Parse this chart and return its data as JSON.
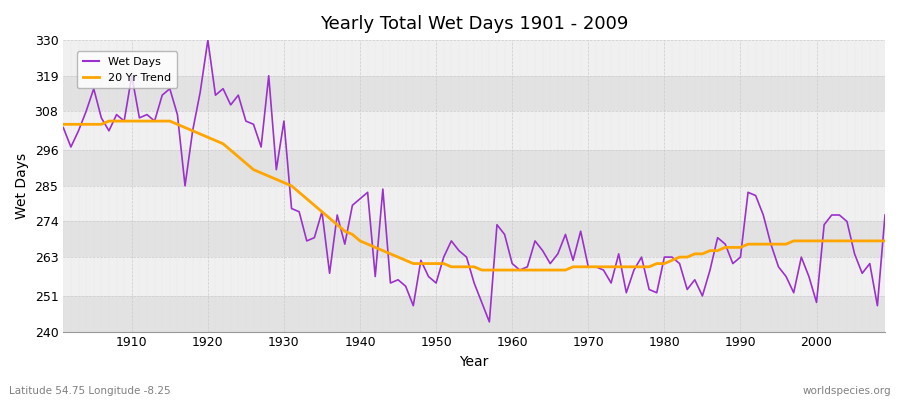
{
  "title": "Yearly Total Wet Days 1901 - 2009",
  "xlabel": "Year",
  "ylabel": "Wet Days",
  "subtitle": "Latitude 54.75 Longitude -8.25",
  "watermark": "worldspecies.org",
  "wet_days_color": "#9B30CD",
  "trend_color": "#FFA500",
  "plot_bg_color": "#F0F0F0",
  "fig_bg_color": "#FFFFFF",
  "band_color_light": "#F0F0F0",
  "band_color_dark": "#E2E2E2",
  "ylim": [
    240,
    330
  ],
  "xlim": [
    1901,
    2009
  ],
  "yticks": [
    240,
    251,
    263,
    274,
    285,
    296,
    308,
    319,
    330
  ],
  "xticks": [
    1910,
    1920,
    1930,
    1940,
    1950,
    1960,
    1970,
    1980,
    1990,
    2000
  ],
  "years": [
    1901,
    1902,
    1903,
    1904,
    1905,
    1906,
    1907,
    1908,
    1909,
    1910,
    1911,
    1912,
    1913,
    1914,
    1915,
    1916,
    1917,
    1918,
    1919,
    1920,
    1921,
    1922,
    1923,
    1924,
    1925,
    1926,
    1927,
    1928,
    1929,
    1930,
    1931,
    1932,
    1933,
    1934,
    1935,
    1936,
    1937,
    1938,
    1939,
    1940,
    1941,
    1942,
    1943,
    1944,
    1945,
    1946,
    1947,
    1948,
    1949,
    1950,
    1951,
    1952,
    1953,
    1954,
    1955,
    1956,
    1957,
    1958,
    1959,
    1960,
    1961,
    1962,
    1963,
    1964,
    1965,
    1966,
    1967,
    1968,
    1969,
    1970,
    1971,
    1972,
    1973,
    1974,
    1975,
    1976,
    1977,
    1978,
    1979,
    1980,
    1981,
    1982,
    1983,
    1984,
    1985,
    1986,
    1987,
    1988,
    1989,
    1990,
    1991,
    1992,
    1993,
    1994,
    1995,
    1996,
    1997,
    1998,
    1999,
    2000,
    2001,
    2002,
    2003,
    2004,
    2005,
    2006,
    2007,
    2008,
    2009
  ],
  "wet_days": [
    303,
    297,
    302,
    308,
    315,
    306,
    302,
    307,
    305,
    319,
    306,
    307,
    305,
    313,
    315,
    307,
    285,
    302,
    314,
    330,
    313,
    315,
    310,
    313,
    305,
    304,
    297,
    319,
    290,
    305,
    278,
    277,
    268,
    269,
    277,
    258,
    276,
    267,
    279,
    281,
    283,
    257,
    284,
    255,
    256,
    254,
    248,
    262,
    257,
    255,
    263,
    268,
    265,
    263,
    255,
    249,
    243,
    273,
    270,
    261,
    259,
    260,
    268,
    265,
    261,
    264,
    270,
    262,
    271,
    260,
    260,
    259,
    255,
    264,
    252,
    259,
    263,
    253,
    252,
    263,
    263,
    261,
    253,
    256,
    251,
    259,
    269,
    267,
    261,
    263,
    283,
    282,
    276,
    267,
    260,
    257,
    252,
    263,
    257,
    249,
    273,
    276,
    276,
    274,
    264,
    258,
    261,
    248,
    276
  ],
  "trend": [
    304,
    304,
    304,
    304,
    304,
    304,
    305,
    305,
    305,
    305,
    305,
    305,
    305,
    305,
    305,
    304,
    303,
    302,
    301,
    300,
    299,
    298,
    296,
    294,
    292,
    290,
    289,
    288,
    287,
    286,
    285,
    283,
    281,
    279,
    277,
    275,
    273,
    271,
    270,
    268,
    267,
    266,
    265,
    264,
    263,
    262,
    261,
    261,
    261,
    261,
    261,
    260,
    260,
    260,
    260,
    259,
    259,
    259,
    259,
    259,
    259,
    259,
    259,
    259,
    259,
    259,
    259,
    260,
    260,
    260,
    260,
    260,
    260,
    260,
    260,
    260,
    260,
    260,
    261,
    261,
    262,
    263,
    263,
    264,
    264,
    265,
    265,
    266,
    266,
    266,
    267,
    267,
    267,
    267,
    267,
    267,
    268,
    268,
    268,
    268,
    268,
    268,
    268,
    268,
    268,
    268,
    268,
    268,
    268
  ]
}
